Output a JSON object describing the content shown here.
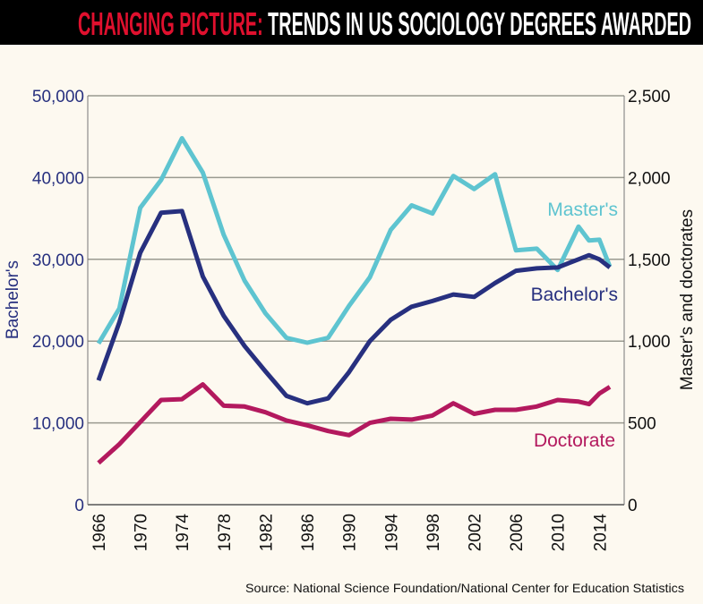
{
  "title": {
    "highlight": "CHANGING PICTURE:",
    "rest": " TRENDS IN US SOCIOLOGY DEGREES AWARDED"
  },
  "source": "Source: National Science Foundation/National Center for Education Statistics",
  "colors": {
    "bachelors": "#27307f",
    "masters": "#5ec4d0",
    "doctorate": "#b3195e",
    "title_highlight": "#e0102e",
    "background": "#fdf9f0"
  },
  "chart_data": {
    "type": "line",
    "title": "CHANGING PICTURE: TRENDS IN US SOCIOLOGY DEGREES AWARDED",
    "ylabel": "Bachelor's",
    "y2label": "Master's and doctorates",
    "ylim": [
      0,
      50000
    ],
    "y2lim": [
      0,
      2500
    ],
    "xlim": [
      1966,
      2015
    ],
    "grid": true,
    "yticks": [
      "0",
      "10,000",
      "20,000",
      "30,000",
      "40,000",
      "50,000"
    ],
    "y2ticks": [
      "0",
      "500",
      "1,000",
      "1,500",
      "2,000",
      "2,500"
    ],
    "xticks": [
      "1966",
      "1970",
      "1974",
      "1978",
      "1982",
      "1986",
      "1990",
      "1994",
      "1998",
      "2002",
      "2006",
      "2010",
      "2014"
    ],
    "x": [
      1966,
      1968,
      1970,
      1972,
      1974,
      1976,
      1978,
      1980,
      1982,
      1984,
      1986,
      1988,
      1990,
      1992,
      1994,
      1996,
      1998,
      2000,
      2002,
      2004,
      2006,
      2008,
      2010,
      2012,
      2013,
      2014,
      2015
    ],
    "series": [
      {
        "name": "Bachelor's",
        "axis": "left",
        "values": [
          15200,
          22300,
          30800,
          35700,
          35900,
          27900,
          23100,
          19400,
          16300,
          13300,
          12400,
          13000,
          16200,
          20000,
          22600,
          24200,
          24900,
          25700,
          25400,
          27100,
          28600,
          28900,
          29000,
          30000,
          30500,
          30000,
          29000
        ]
      },
      {
        "name": "Master's",
        "axis": "right",
        "values": [
          985,
          1200,
          1815,
          1985,
          2240,
          2030,
          1650,
          1370,
          1170,
          1020,
          990,
          1020,
          1215,
          1390,
          1680,
          1830,
          1780,
          2010,
          1930,
          2020,
          1555,
          1565,
          1435,
          1700,
          1615,
          1620,
          1455
        ]
      },
      {
        "name": "Doctorate",
        "axis": "right",
        "values": [
          255,
          370,
          505,
          640,
          645,
          735,
          605,
          600,
          565,
          515,
          485,
          450,
          425,
          500,
          525,
          520,
          545,
          620,
          555,
          580,
          580,
          600,
          640,
          630,
          615,
          680,
          720
        ]
      }
    ]
  }
}
